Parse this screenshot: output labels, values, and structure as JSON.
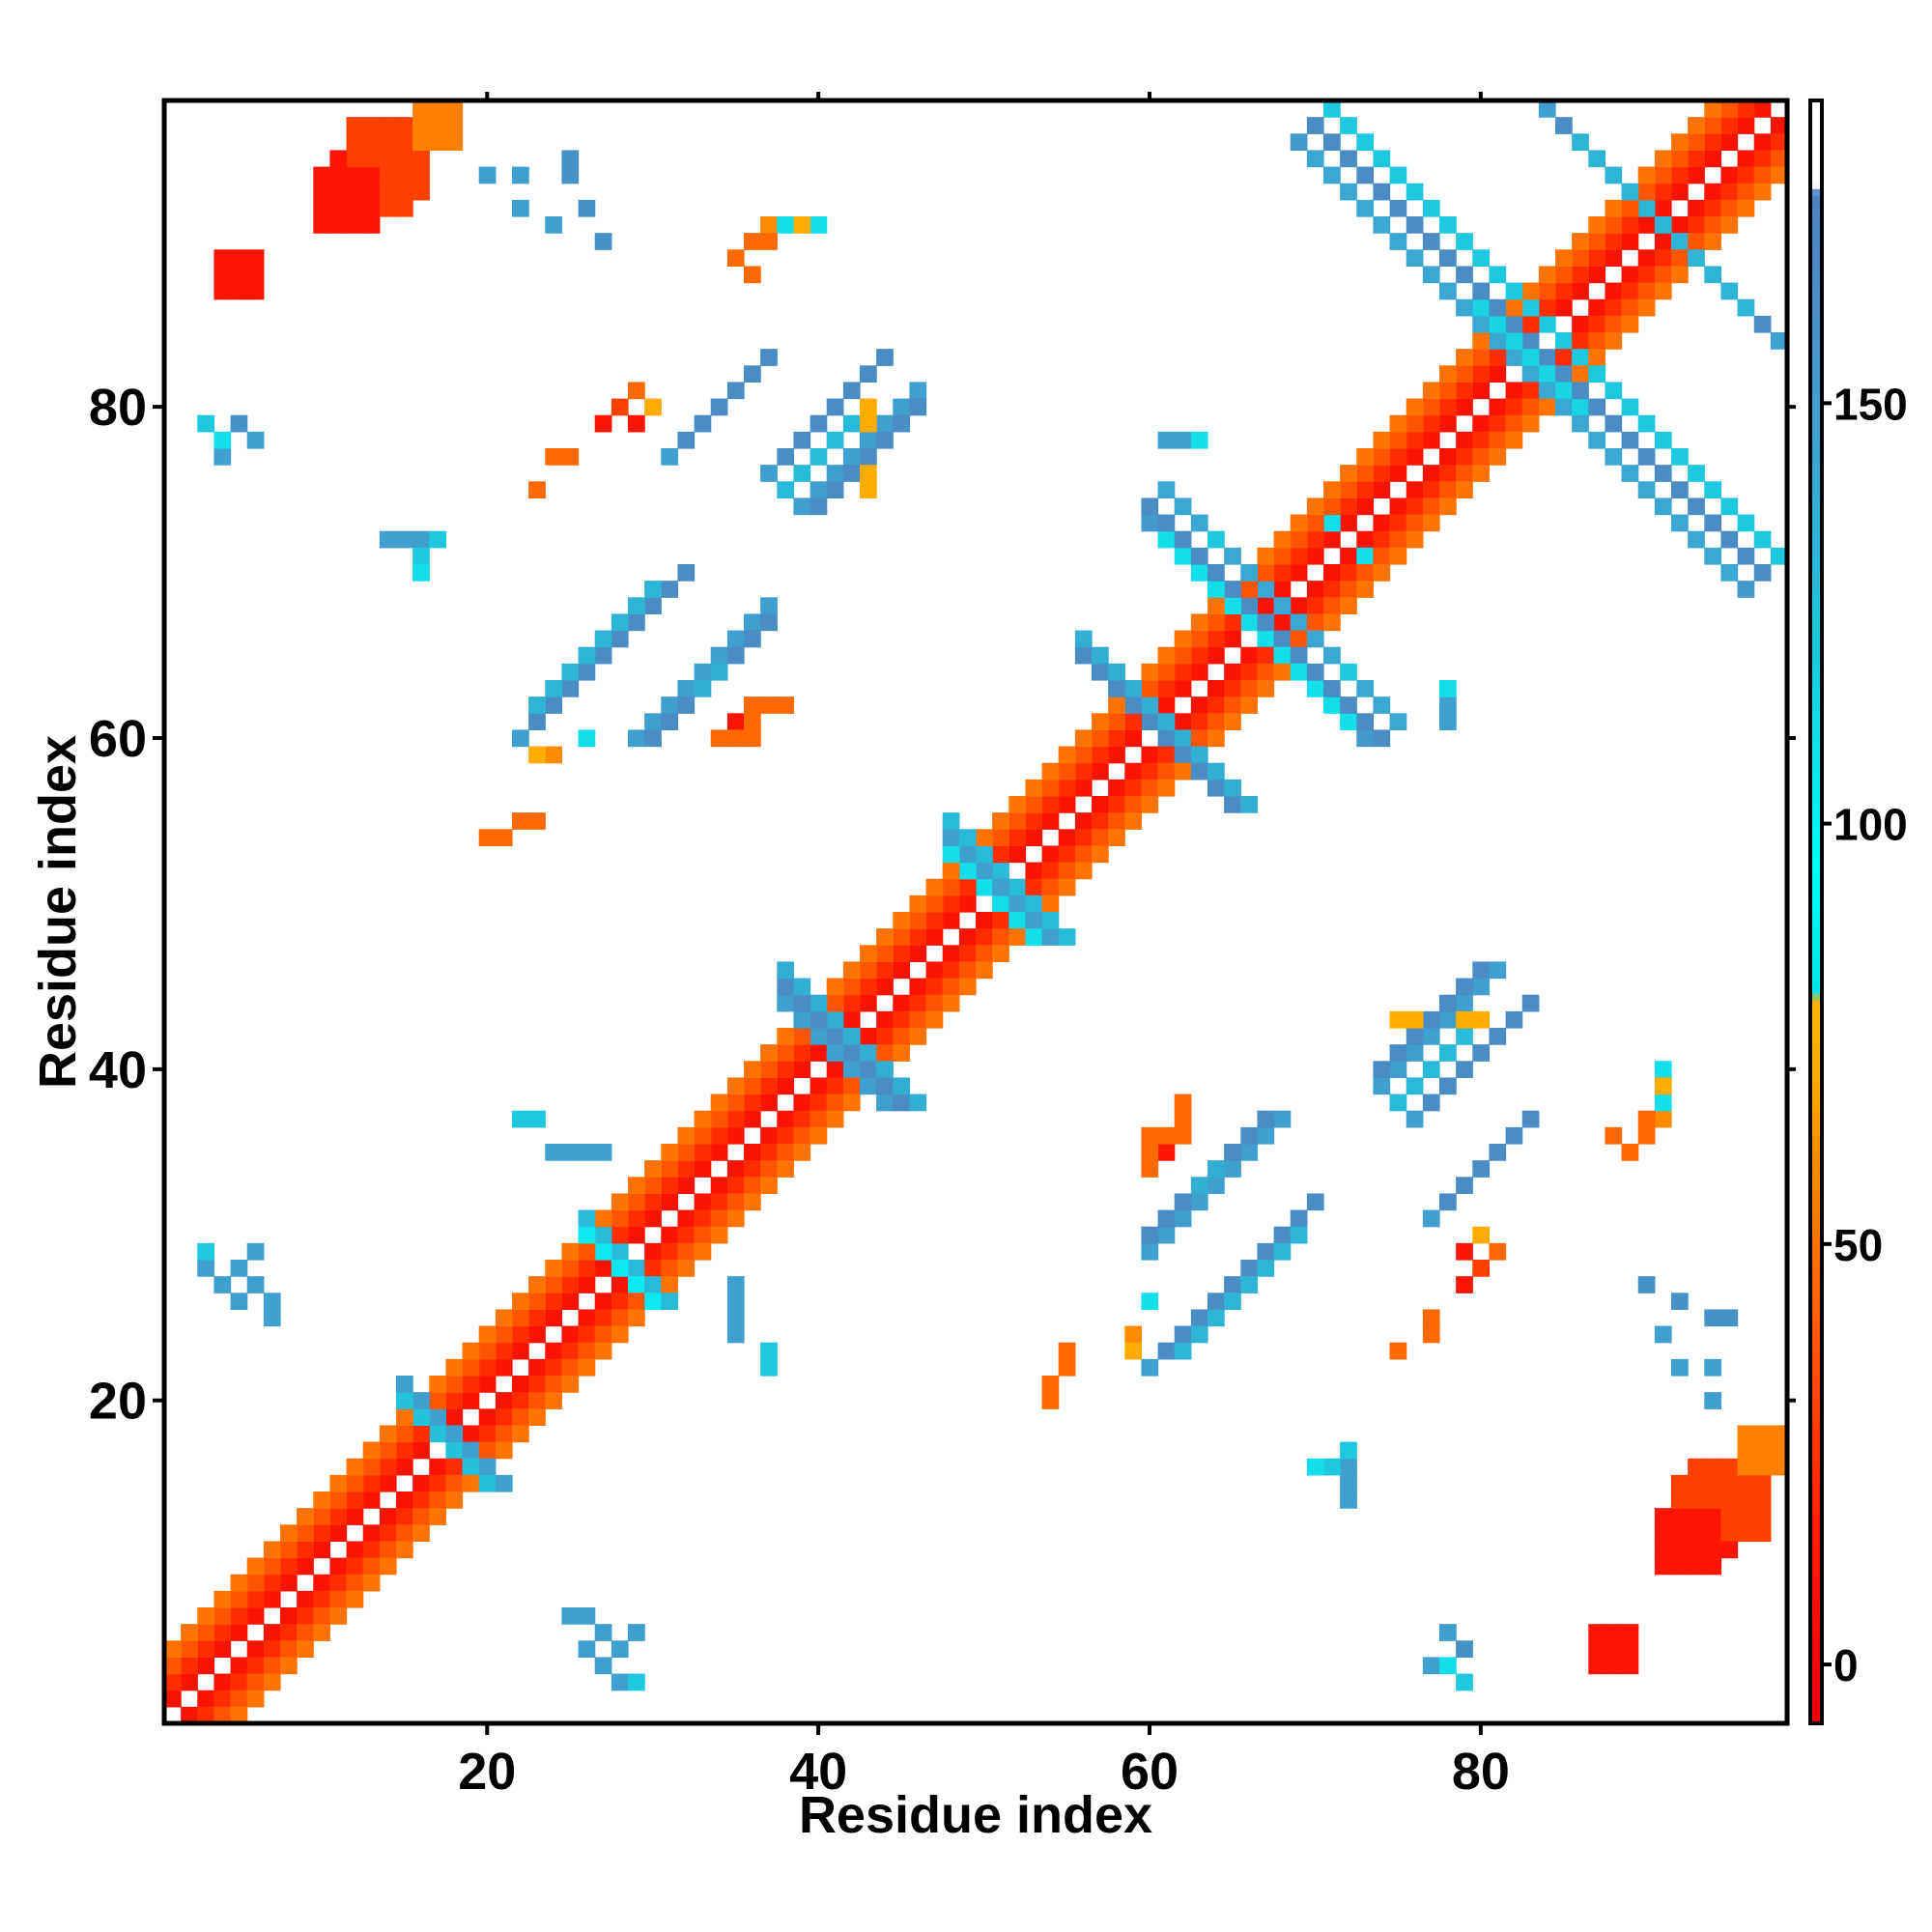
{
  "chart_data": {
    "type": "heatmap",
    "title": "",
    "xlabel": "Residue index",
    "ylabel": "Residue index",
    "xlim": [
      0.5,
      98.5
    ],
    "ylim": [
      0.5,
      98.5
    ],
    "x_ticks": [
      20,
      40,
      60,
      80
    ],
    "y_ticks": [
      20,
      40,
      60,
      80
    ],
    "colorbar": {
      "range": [
        -7,
        186
      ],
      "ticks": [
        0,
        50,
        100,
        150
      ],
      "stops": [
        {
          "value": -7,
          "color": "#e8000b"
        },
        {
          "value": 14,
          "color": "#ff1a00"
        },
        {
          "value": 30,
          "color": "#ff4000"
        },
        {
          "value": 46,
          "color": "#ff6a00"
        },
        {
          "value": 60,
          "color": "#ff8c00"
        },
        {
          "value": 70,
          "color": "#ffaa00"
        },
        {
          "value": 79,
          "color": "#ffb000"
        },
        {
          "value": 80,
          "color": "#00e5ee"
        },
        {
          "value": 95,
          "color": "#00ffff"
        },
        {
          "value": 120,
          "color": "#1ec8e0"
        },
        {
          "value": 150,
          "color": "#3f9fd0"
        },
        {
          "value": 175,
          "color": "#4f7fbf"
        },
        {
          "value": 176,
          "color": "#ffffff"
        },
        {
          "value": 186,
          "color": "#ffffff"
        }
      ]
    },
    "grid": false,
    "legend": "right colorbar",
    "symmetric": true,
    "description_of_cells": "Contact map of residue pairs (i,j); value encodes contact category (0-80 red/orange = local/helical, 80-175 cyan/blue = beta pairing). Cells listed for i>j; mirrored.",
    "bands": [
      {
        "type": "diag",
        "start": [
          2,
          1
        ],
        "length": 97,
        "value": 8
      },
      {
        "type": "diag",
        "start": [
          3,
          1
        ],
        "length": 96,
        "value": 22
      },
      {
        "type": "diag",
        "start": [
          4,
          1
        ],
        "length": 95,
        "value": 38
      },
      {
        "type": "diag",
        "start": [
          5,
          1
        ],
        "length": 94,
        "value": 50
      },
      {
        "type": "anti",
        "start": [
          19,
          16
        ],
        "length": 4,
        "value": 110
      },
      {
        "type": "anti",
        "start": [
          20,
          15
        ],
        "length": 5,
        "value": 125
      },
      {
        "type": "anti",
        "start": [
          21,
          15
        ],
        "length": 5,
        "value": 150
      },
      {
        "type": "anti",
        "start": [
          30,
          26
        ],
        "length": 4,
        "value": 105
      },
      {
        "type": "anti",
        "start": [
          31,
          26
        ],
        "length": 5,
        "value": 130
      },
      {
        "type": "anti",
        "start": [
          43,
          39
        ],
        "length": 4,
        "value": 120
      },
      {
        "type": "anti",
        "start": [
          44,
          38
        ],
        "length": 6,
        "value": 150
      },
      {
        "type": "anti",
        "start": [
          45,
          38
        ],
        "length": 7,
        "value": 165
      },
      {
        "type": "anti",
        "start": [
          46,
          38
        ],
        "length": 8,
        "value": 140
      },
      {
        "type": "anti",
        "start": [
          53,
          48
        ],
        "length": 4,
        "value": 110
      },
      {
        "type": "anti",
        "start": [
          54,
          48
        ],
        "length": 6,
        "value": 150
      },
      {
        "type": "anti",
        "start": [
          55,
          48
        ],
        "length": 6,
        "value": 130
      },
      {
        "type": "anti",
        "start": [
          64,
          57
        ],
        "length": 6,
        "value": 150
      },
      {
        "type": "anti",
        "start": [
          65,
          56
        ],
        "length": 8,
        "value": 165
      },
      {
        "type": "anti",
        "start": [
          66,
          56
        ],
        "length": 9,
        "value": 140
      },
      {
        "type": "anti",
        "start": [
          84,
          81
        ],
        "length": 3,
        "value": 105
      },
      {
        "type": "anti",
        "start": [
          85,
          80
        ],
        "length": 4,
        "value": 125
      },
      {
        "type": "anti",
        "start": [
          86,
          80
        ],
        "length": 4,
        "value": 115
      },
      {
        "type": "anti",
        "start": [
          73,
          60
        ],
        "length": 12,
        "value": 155
      },
      {
        "type": "anti",
        "start": [
          74,
          60
        ],
        "length": 13,
        "value": 165
      },
      {
        "type": "anti",
        "start": [
          75,
          61
        ],
        "length": 12,
        "value": 145
      },
      {
        "type": "anti",
        "start": [
          72,
          61
        ],
        "length": 6,
        "value": 110
      },
      {
        "type": "anti",
        "start": [
          96,
          69
        ],
        "length": 22,
        "value": 155
      },
      {
        "type": "anti",
        "start": [
          97,
          70
        ],
        "length": 22,
        "value": 165
      },
      {
        "type": "anti",
        "start": [
          95,
          70
        ],
        "length": 20,
        "value": 145
      },
      {
        "type": "anti",
        "start": [
          98,
          71
        ],
        "length": 18,
        "value": 120
      },
      {
        "type": "anti",
        "start": [
          98,
          84
        ],
        "length": 14,
        "value": 150
      },
      {
        "type": "anti",
        "start": [
          97,
          85
        ],
        "length": 12,
        "value": 165
      },
      {
        "type": "anti",
        "start": [
          96,
          86
        ],
        "length": 9,
        "value": 135
      },
      {
        "type": "diag",
        "start": [
          60,
          22
        ],
        "length": 10,
        "value": 150
      },
      {
        "type": "diag",
        "start": [
          61,
          23
        ],
        "length": 10,
        "value": 165
      },
      {
        "type": "diag",
        "start": [
          62,
          23
        ],
        "length": 8,
        "value": 135
      },
      {
        "type": "diag",
        "start": [
          76,
          37
        ],
        "length": 8,
        "value": 150
      },
      {
        "type": "diag",
        "start": [
          77,
          38
        ],
        "length": 7,
        "value": 165
      },
      {
        "type": "diag",
        "start": [
          75,
          38
        ],
        "length": 6,
        "value": 130
      },
      {
        "type": "diag",
        "start": [
          77,
          31
        ],
        "length": 7,
        "value": 150
      },
      {
        "type": "diag",
        "start": [
          78,
          32
        ],
        "length": 6,
        "value": 165
      },
      {
        "type": "diag",
        "start": [
          39,
          74
        ],
        "length": 8,
        "value": 150
      },
      {
        "type": "diag",
        "start": [
          40,
          74
        ],
        "length": 7,
        "value": 165
      },
      {
        "type": "diag",
        "start": [
          29,
          60
        ],
        "length": 9,
        "value": 150
      },
      {
        "type": "diag",
        "start": [
          30,
          60
        ],
        "length": 8,
        "value": 165
      }
    ],
    "blobs": [
      {
        "x0": 12,
        "x1": 16,
        "y0": 93,
        "y1": 97,
        "value": 30
      },
      {
        "x0": 11,
        "x1": 14,
        "y0": 92,
        "y1": 95,
        "value": 10
      },
      {
        "x0": 16,
        "x1": 18,
        "y0": 96,
        "y1": 98,
        "value": 55
      },
      {
        "x0": 5,
        "x1": 6,
        "y0": 87,
        "y1": 89,
        "value": 10
      },
      {
        "x0": 92,
        "x1": 96,
        "y0": 12,
        "y1": 15,
        "value": 30
      },
      {
        "x0": 91,
        "x1": 94,
        "y0": 10,
        "y1": 13,
        "value": 10
      },
      {
        "x0": 96,
        "x1": 98,
        "y0": 16,
        "y1": 18,
        "value": 55
      },
      {
        "x0": 87,
        "x1": 89,
        "y0": 4,
        "y1": 5,
        "value": 10
      }
    ],
    "points": [
      [
        5,
        79,
        160
      ],
      [
        6,
        78,
        150
      ],
      [
        25,
        95,
        160
      ],
      [
        25,
        94,
        160
      ],
      [
        26,
        92,
        160
      ],
      [
        27,
        90,
        160
      ],
      [
        35,
        89,
        46
      ],
      [
        36,
        90,
        46
      ],
      [
        37,
        91,
        60
      ],
      [
        38,
        91,
        110
      ],
      [
        28,
        80,
        30
      ],
      [
        29,
        81,
        46
      ],
      [
        27,
        79,
        10
      ],
      [
        29,
        79,
        46
      ],
      [
        24,
        77,
        46
      ],
      [
        23,
        75,
        46
      ],
      [
        43,
        75,
        72
      ],
      [
        43,
        76,
        72
      ],
      [
        15,
        72,
        150
      ],
      [
        16,
        72,
        150
      ],
      [
        17,
        72,
        120
      ],
      [
        61,
        78,
        150
      ],
      [
        62,
        78,
        150
      ],
      [
        63,
        78,
        110
      ],
      [
        73,
        71,
        110
      ],
      [
        72,
        64,
        120
      ],
      [
        78,
        61,
        150
      ],
      [
        78,
        62,
        150
      ],
      [
        22,
        55,
        46
      ],
      [
        23,
        55,
        46
      ],
      [
        21,
        54,
        46
      ],
      [
        35,
        61,
        10
      ],
      [
        36,
        62,
        46
      ],
      [
        34,
        60,
        46
      ],
      [
        35,
        60,
        46
      ],
      [
        24,
        59,
        60
      ],
      [
        79,
        43,
        72
      ],
      [
        80,
        43,
        72
      ],
      [
        60,
        36,
        46
      ],
      [
        61,
        36,
        46
      ],
      [
        62,
        37,
        46
      ],
      [
        60,
        35,
        46
      ],
      [
        62,
        38,
        46
      ],
      [
        23,
        37,
        120
      ],
      [
        25,
        35,
        150
      ],
      [
        27,
        35,
        150
      ],
      [
        35,
        26,
        150
      ],
      [
        35,
        24,
        150
      ],
      [
        37,
        22,
        120
      ],
      [
        5,
        28,
        150
      ],
      [
        6,
        29,
        150
      ],
      [
        79,
        29,
        10
      ],
      [
        80,
        30,
        72
      ],
      [
        79,
        27,
        10
      ],
      [
        77,
        25,
        46
      ],
      [
        77,
        24,
        46
      ],
      [
        75,
        23,
        46
      ],
      [
        91,
        40,
        110
      ],
      [
        91,
        39,
        72
      ],
      [
        90,
        37,
        46
      ],
      [
        89,
        35,
        46
      ],
      [
        88,
        36,
        46
      ],
      [
        91,
        24,
        150
      ],
      [
        92,
        22,
        150
      ],
      [
        94,
        22,
        150
      ],
      [
        94,
        20,
        150
      ],
      [
        54,
        21,
        46
      ],
      [
        55,
        22,
        46
      ],
      [
        54,
        20,
        46
      ],
      [
        59,
        23,
        72
      ],
      [
        60,
        26,
        110
      ],
      [
        25,
        7,
        150
      ],
      [
        26,
        7,
        150
      ],
      [
        27,
        6,
        150
      ],
      [
        26,
        5,
        150
      ],
      [
        27,
        4,
        150
      ],
      [
        28,
        3,
        150
      ],
      [
        29,
        3,
        120
      ],
      [
        77,
        4,
        150
      ],
      [
        79,
        3,
        120
      ],
      [
        78,
        4,
        110
      ],
      [
        72,
        14,
        150
      ],
      [
        72,
        15,
        150
      ],
      [
        71,
        16,
        120
      ],
      [
        70,
        16,
        110
      ],
      [
        64,
        34,
        140
      ],
      [
        63,
        33,
        140
      ]
    ]
  }
}
